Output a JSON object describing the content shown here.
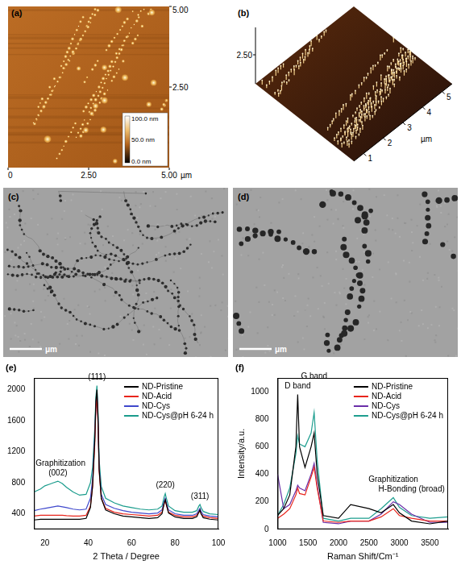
{
  "panels": [
    {
      "panel": "(a)",
      "type": "afm_image",
      "x_ticks": [
        "0",
        "2.50",
        "5.00"
      ],
      "y_ticks": [
        "2.50",
        "5.00"
      ],
      "unit": "µm",
      "colorbar": [
        "100.0 nm",
        "50.0 nm",
        "0.0 nm"
      ]
    },
    {
      "panel": "(b)",
      "type": "afm_3d",
      "z_tick": "2.50",
      "x_ticks": [
        "1",
        "2",
        "3",
        "4",
        "5"
      ],
      "unit": "µm"
    },
    {
      "panel": "(c)",
      "type": "tem_image",
      "scale_bar": "μm"
    },
    {
      "panel": "(d)",
      "type": "tem_image",
      "scale_bar": "μm"
    }
  ],
  "chart_data": [
    {
      "type": "line",
      "panel": "(e)",
      "x_label": "2 Theta / Degree",
      "x": [
        15,
        18,
        20,
        22,
        24,
        26,
        28,
        30,
        33,
        36,
        39,
        41,
        42,
        43,
        43.5,
        44,
        44.5,
        45,
        46,
        48,
        52,
        56,
        60,
        64,
        68,
        72,
        74,
        75,
        75.5,
        76,
        77,
        80,
        84,
        88,
        90,
        91,
        91.5,
        92,
        93,
        96,
        100
      ],
      "series": [
        {
          "name": "ND-Pristine",
          "color": "#000000",
          "values": [
            320,
            330,
            330,
            330,
            330,
            330,
            330,
            330,
            330,
            330,
            340,
            480,
            760,
            1350,
            1850,
            2000,
            1650,
            980,
            600,
            450,
            400,
            370,
            360,
            350,
            340,
            350,
            400,
            540,
            580,
            520,
            410,
            360,
            340,
            340,
            360,
            420,
            450,
            400,
            350,
            330,
            320
          ]
        },
        {
          "name": "ND-Acid",
          "color": "#e8251c",
          "values": [
            370,
            380,
            380,
            380,
            380,
            380,
            380,
            375,
            370,
            370,
            380,
            500,
            750,
            1300,
            1750,
            1900,
            1550,
            950,
            600,
            470,
            420,
            400,
            390,
            380,
            370,
            380,
            420,
            530,
            570,
            510,
            420,
            380,
            360,
            360,
            380,
            420,
            440,
            400,
            370,
            350,
            340
          ]
        },
        {
          "name": "ND-Cys",
          "color": "#3f48cc",
          "values": [
            440,
            460,
            470,
            480,
            490,
            500,
            490,
            480,
            460,
            450,
            460,
            600,
            850,
            1400,
            1800,
            1950,
            1600,
            1000,
            650,
            520,
            470,
            440,
            420,
            410,
            400,
            410,
            450,
            560,
            600,
            540,
            450,
            400,
            380,
            380,
            400,
            450,
            470,
            430,
            390,
            370,
            360
          ]
        },
        {
          "name": "ND-Cys@pH 6-24 h",
          "color": "#1a9c8c",
          "values": [
            680,
            720,
            760,
            780,
            800,
            820,
            790,
            740,
            680,
            640,
            650,
            800,
            1000,
            1500,
            1900,
            2050,
            1700,
            1100,
            750,
            600,
            540,
            500,
            480,
            460,
            450,
            460,
            500,
            620,
            660,
            600,
            500,
            440,
            420,
            420,
            440,
            500,
            520,
            480,
            430,
            400,
            390
          ]
        }
      ],
      "xlim": [
        15,
        100
      ],
      "xticks": [
        20,
        40,
        60,
        80,
        100
      ],
      "ylim": [
        200,
        2150
      ],
      "yticks": [
        400,
        800,
        1200,
        1600,
        2000
      ],
      "grid": false,
      "legend": "upper right",
      "annotations": [
        {
          "text": "(111)",
          "x": 44
        },
        {
          "text": "(220)",
          "x": 75.5
        },
        {
          "text": "(311)",
          "x": 91.5
        },
        {
          "text": "(002)",
          "x": 26
        },
        {
          "text": "Graphitization",
          "x": 26
        }
      ]
    },
    {
      "type": "line",
      "panel": "(f)",
      "x_label": "Raman Shift/Cm⁻¹",
      "y_label": "Intensity/a.u.",
      "x": [
        1000,
        1100,
        1200,
        1300,
        1330,
        1360,
        1450,
        1550,
        1600,
        1650,
        1750,
        2000,
        2200,
        2500,
        2700,
        2900,
        3000,
        3200,
        3500,
        3800
      ],
      "series": [
        {
          "name": "ND-Pristine",
          "color": "#000000",
          "values": [
            100,
            150,
            250,
            600,
            980,
            600,
            450,
            600,
            700,
            400,
            100,
            80,
            180,
            150,
            120,
            180,
            120,
            60,
            40,
            60
          ]
        },
        {
          "name": "ND-Acid",
          "color": "#e8251c",
          "values": [
            80,
            110,
            150,
            250,
            300,
            260,
            250,
            380,
            450,
            300,
            60,
            50,
            60,
            60,
            90,
            150,
            100,
            80,
            60,
            60
          ]
        },
        {
          "name": "ND-Cys",
          "color": "#6a2fa8",
          "values": [
            400,
            150,
            180,
            280,
            320,
            300,
            280,
            400,
            480,
            320,
            50,
            40,
            60,
            60,
            110,
            200,
            180,
            110,
            50,
            50
          ]
        },
        {
          "name": "ND-Cys@pH 6-24 h",
          "color": "#1e9e8f",
          "values": [
            100,
            180,
            300,
            550,
            680,
            620,
            600,
            700,
            850,
            500,
            80,
            60,
            80,
            80,
            150,
            230,
            160,
            100,
            80,
            90
          ]
        }
      ],
      "xlim": [
        1000,
        3800
      ],
      "xticks": [
        1000,
        1500,
        2000,
        2500,
        3000,
        3500
      ],
      "ylim": [
        0,
        1100
      ],
      "yticks": [
        0,
        200,
        400,
        600,
        800,
        1000
      ],
      "grid": false,
      "legend": "upper right",
      "annotations": [
        {
          "text": "D band",
          "x": 1330
        },
        {
          "text": "G band",
          "x": 1600
        },
        {
          "text": "H-Bonding (broad)",
          "x": 3200
        },
        {
          "text": "Graphitization",
          "x": 2900
        }
      ]
    }
  ]
}
